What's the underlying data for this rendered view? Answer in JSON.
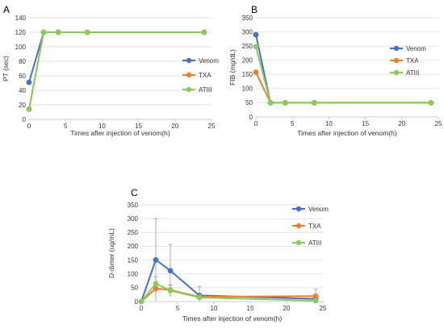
{
  "chart_data": [
    {
      "panel_label": "A",
      "type": "line",
      "xlabel": "Times after injection of venom(h)",
      "ylabel": "PT (sec)",
      "xlim": [
        0,
        25
      ],
      "ylim": [
        0,
        140
      ],
      "x_ticks": [
        0,
        5,
        10,
        15,
        20,
        25
      ],
      "y_ticks": [
        0,
        20,
        40,
        60,
        80,
        100,
        120,
        140
      ],
      "grid": "horizontal",
      "legend_position": "right",
      "x": [
        0,
        2,
        4,
        8,
        24
      ],
      "series": [
        {
          "name": "Venom",
          "color": "#4472C4",
          "values": [
            51,
            120,
            120,
            120,
            120
          ]
        },
        {
          "name": "TXA",
          "color": "#ED7D31",
          "values": [
            14,
            120,
            120,
            120,
            120
          ]
        },
        {
          "name": "ATIII",
          "color": "#8BCB57",
          "values": [
            14,
            120,
            120,
            120,
            120
          ]
        }
      ]
    },
    {
      "panel_label": "B",
      "type": "line",
      "xlabel": "Times after injection of venom(h)",
      "ylabel": "FIB (mg/dL)",
      "xlim": [
        0,
        25
      ],
      "ylim": [
        0,
        350
      ],
      "x_ticks": [
        0,
        5,
        10,
        15,
        20,
        25
      ],
      "y_ticks": [
        0,
        50,
        100,
        150,
        200,
        250,
        300,
        350
      ],
      "grid": "horizontal",
      "legend_position": "right",
      "x": [
        0,
        2,
        4,
        8,
        24
      ],
      "series": [
        {
          "name": "Venom",
          "color": "#4472C4",
          "values": [
            290,
            50,
            50,
            50,
            50
          ]
        },
        {
          "name": "TXA",
          "color": "#ED7D31",
          "values": [
            158,
            50,
            50,
            50,
            50
          ]
        },
        {
          "name": "ATIII",
          "color": "#8BCB57",
          "values": [
            248,
            50,
            50,
            50,
            50
          ]
        }
      ]
    },
    {
      "panel_label": "C",
      "type": "line",
      "xlabel": "Times after injection of venom(h)",
      "ylabel": "D-dimer (ug/mL)",
      "xlim": [
        0,
        25
      ],
      "ylim": [
        0,
        350
      ],
      "x_ticks": [
        0,
        5,
        10,
        15,
        20,
        25
      ],
      "y_ticks": [
        0,
        50,
        100,
        150,
        200,
        250,
        300,
        350
      ],
      "grid": "horizontal",
      "legend_position": "right",
      "x": [
        0,
        2,
        4,
        8,
        24
      ],
      "series": [
        {
          "name": "Venom",
          "color": "#4472C4",
          "values": [
            0,
            151,
            112,
            22,
            10
          ],
          "errors": [
            0,
            148,
            95,
            33,
            5
          ]
        },
        {
          "name": "TXA",
          "color": "#ED7D31",
          "values": [
            0,
            47,
            42,
            17,
            20
          ],
          "errors": [
            0,
            20,
            18,
            8,
            24
          ]
        },
        {
          "name": "ATIII",
          "color": "#8BCB57",
          "values": [
            0,
            65,
            40,
            15,
            3
          ],
          "errors": [
            0,
            25,
            20,
            10,
            4
          ]
        }
      ]
    }
  ]
}
